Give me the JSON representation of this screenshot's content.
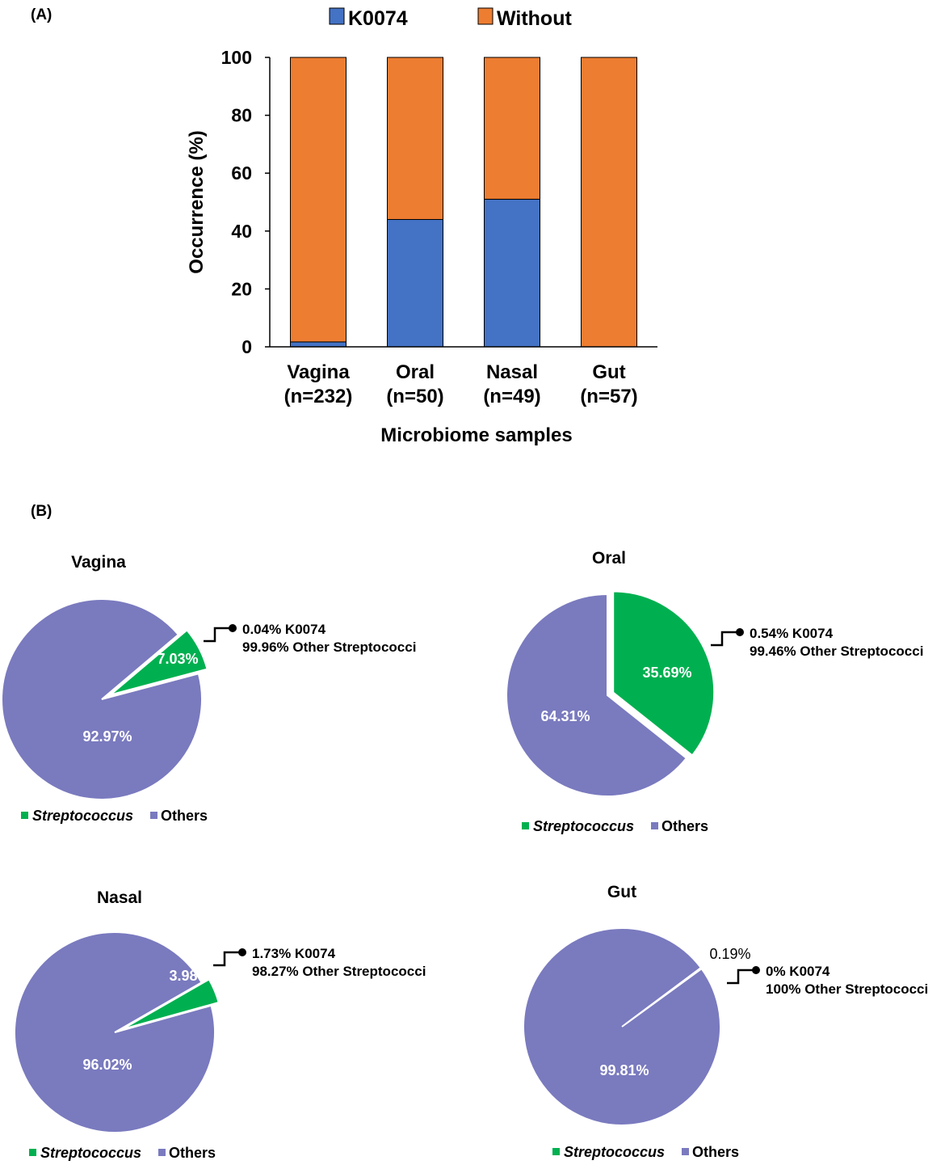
{
  "colors": {
    "k0074": "#4472c4",
    "without": "#ed7d31",
    "streptococcus": "#00b050",
    "others": "#7a7abf"
  },
  "panels": {
    "a_label": "(A)",
    "b_label": "(B)"
  },
  "chart_data": [
    {
      "type": "bar",
      "stacked": true,
      "title": "",
      "categories": [
        "Vagina",
        "Oral",
        "Nasal",
        "Gut"
      ],
      "category_counts": [
        "(n=232)",
        "(n=50)",
        "(n=49)",
        "(n=57)"
      ],
      "series": [
        {
          "name": "K0074",
          "values": [
            1.7,
            44,
            51,
            0
          ]
        },
        {
          "name": "Without",
          "values": [
            98.3,
            56,
            49,
            100
          ]
        }
      ],
      "xlabel": "Microbiome samples",
      "ylabel": "Occurrence (%)",
      "ylim": [
        0,
        100
      ],
      "yticks": [
        "0",
        "20",
        "40",
        "60",
        "80",
        "100"
      ],
      "legend": "top"
    },
    {
      "type": "pie",
      "title": "Vagina",
      "labels": [
        "Streptococcus",
        "Others"
      ],
      "values": [
        7.03,
        92.97
      ],
      "slice_labels": [
        "7.03%",
        "92.97%"
      ],
      "callout": [
        "0.04% K0074",
        "99.96% Other Streptococci"
      ]
    },
    {
      "type": "pie",
      "title": "Oral",
      "labels": [
        "Streptococcus",
        "Others"
      ],
      "values": [
        35.69,
        64.31
      ],
      "slice_labels": [
        "35.69%",
        "64.31%"
      ],
      "callout": [
        "0.54% K0074",
        "99.46% Other Streptococci"
      ]
    },
    {
      "type": "pie",
      "title": "Nasal",
      "labels": [
        "Streptococcus",
        "Others"
      ],
      "values": [
        3.98,
        96.02
      ],
      "slice_labels": [
        "3.98%",
        "96.02%"
      ],
      "callout": [
        "1.73% K0074",
        "98.27% Other Streptococci"
      ]
    },
    {
      "type": "pie",
      "title": "Gut",
      "labels": [
        "Streptococcus",
        "Others"
      ],
      "values": [
        0.19,
        99.81
      ],
      "slice_labels": [
        "0.19%",
        "99.81%"
      ],
      "callout": [
        "0% K0074",
        "100% Other Streptococci"
      ]
    }
  ]
}
